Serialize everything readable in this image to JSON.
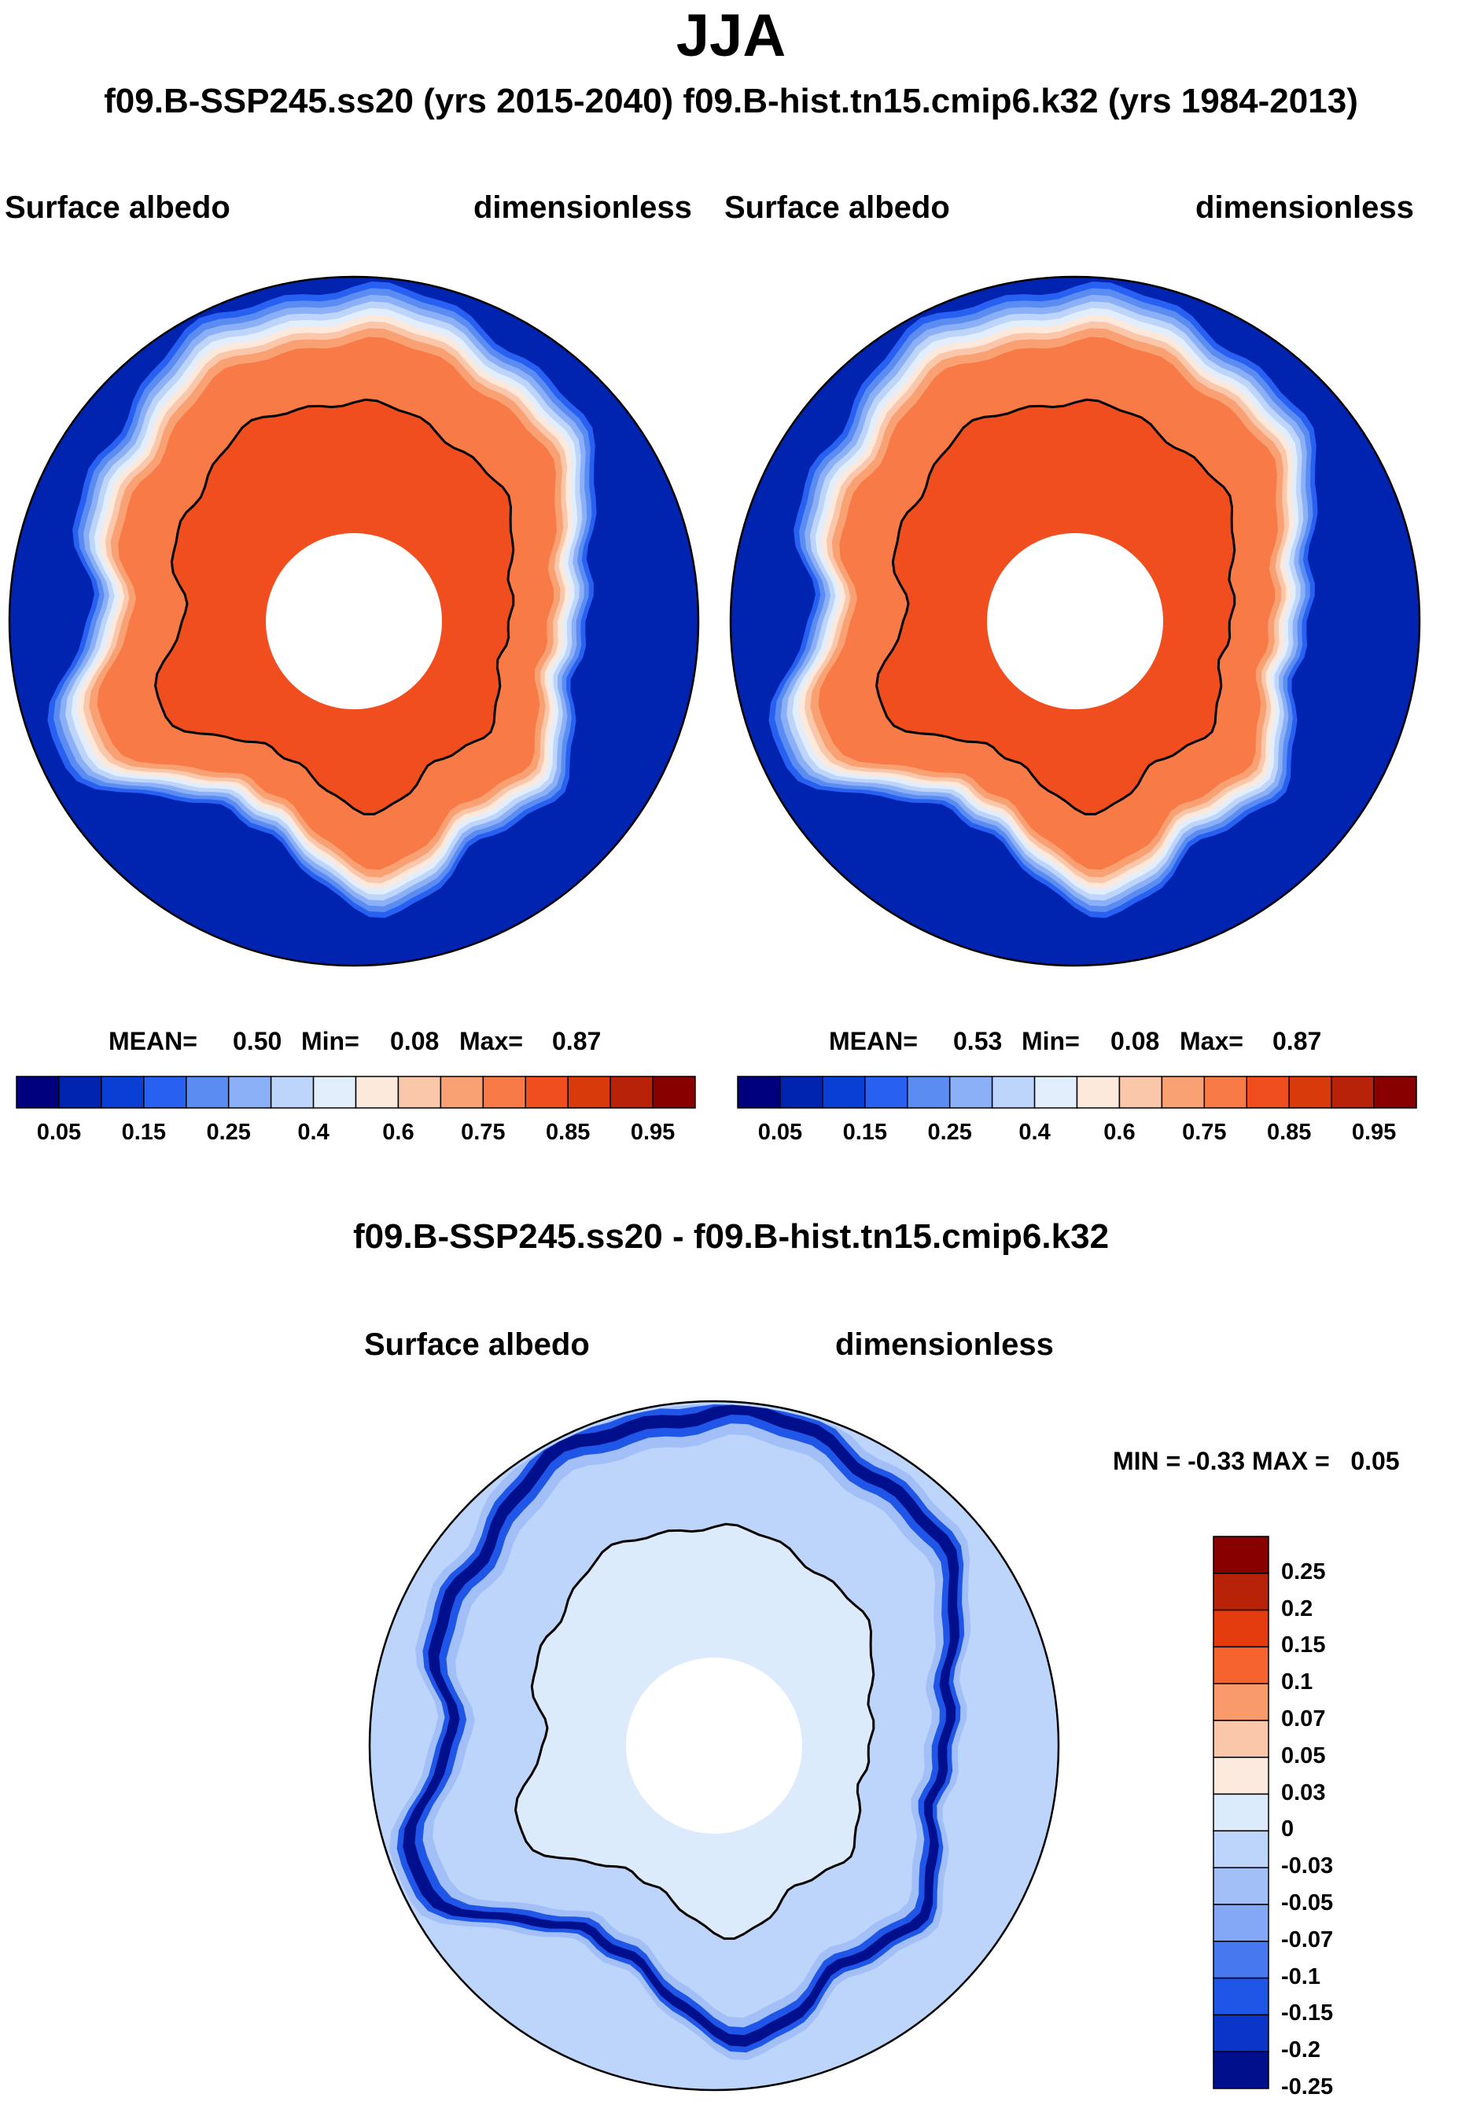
{
  "chart_data": [
    {
      "type": "heatmap",
      "projection": "south-polar-stereographic",
      "title": "Surface albedo",
      "units": "dimensionless",
      "case": "f09.B-SSP245.ss20 (yrs 2015-2040)",
      "stats": {
        "mean_label": "MEAN=",
        "mean": "0.50",
        "min_label": "Min=",
        "min": "0.08",
        "max_label": "Max=",
        "max": "0.87"
      },
      "colorbar_labels": [
        "0.05",
        "0.15",
        "0.25",
        "0.4",
        "0.6",
        "0.75",
        "0.85",
        "0.95"
      ],
      "field_regions": {
        "open_ocean": 0.08,
        "sea_ice_edge": 0.5,
        "sea_ice": 0.78,
        "ice_sheet": 0.83
      }
    },
    {
      "type": "heatmap",
      "projection": "south-polar-stereographic",
      "title": "Surface albedo",
      "units": "dimensionless",
      "case": "f09.B-hist.tn15.cmip6.k32 (yrs 1984-2013)",
      "stats": {
        "mean_label": "MEAN=",
        "mean": "0.53",
        "min_label": "Min=",
        "min": "0.08",
        "max_label": "Max=",
        "max": "0.87"
      },
      "colorbar_labels": [
        "0.05",
        "0.15",
        "0.25",
        "0.4",
        "0.6",
        "0.75",
        "0.85",
        "0.95"
      ],
      "field_regions": {
        "open_ocean": 0.08,
        "sea_ice_edge": 0.5,
        "sea_ice": 0.78,
        "ice_sheet": 0.83
      }
    },
    {
      "type": "heatmap",
      "projection": "south-polar-stereographic",
      "title": "Surface albedo",
      "units": "dimensionless",
      "case": "f09.B-SSP245.ss20 - f09.B-hist.tn15.cmip6.k32",
      "stats": {
        "min_label": "MIN =",
        "min": "-0.33",
        "max_label": "MAX =",
        "max": "0.05"
      },
      "colorbar_labels": [
        "0.25",
        "0.2",
        "0.15",
        "0.1",
        "0.07",
        "0.05",
        "0.03",
        "0",
        "-0.03",
        "-0.05",
        "-0.07",
        "-0.1",
        "-0.15",
        "-0.2",
        "-0.25"
      ],
      "field_regions": {
        "background": -0.01,
        "continent": 0.01,
        "ice_edge_ring": -0.2
      }
    }
  ],
  "header": {
    "title": "JJA",
    "subtitle": "f09.B-SSP245.ss20 (yrs 2015-2040)  f09.B-hist.tn15.cmip6.k32 (yrs 1984-2013)",
    "diff_title": "f09.B-SSP245.ss20 - f09.B-hist.tn15.cmip6.k32"
  },
  "colors": {
    "abs_scale": [
      "#00007f",
      "#0024b0",
      "#0a3fd6",
      "#2860f2",
      "#5a8cf2",
      "#8cb0f7",
      "#bdd4fb",
      "#e3eefc",
      "#fde8dc",
      "#fbc7aa",
      "#f9a173",
      "#f77a47",
      "#f04e1e",
      "#d83a0c",
      "#b82208",
      "#880000"
    ],
    "diff_scale": [
      "#880000",
      "#b82208",
      "#e43c0e",
      "#f7632e",
      "#f99a6d",
      "#fbc7aa",
      "#fdeade",
      "#dcebfb",
      "#bdd4fb",
      "#a2c0f7",
      "#84a8f5",
      "#4878f0",
      "#1f56e8",
      "#0a35c8",
      "#000f8c"
    ],
    "coast": "#000000"
  }
}
